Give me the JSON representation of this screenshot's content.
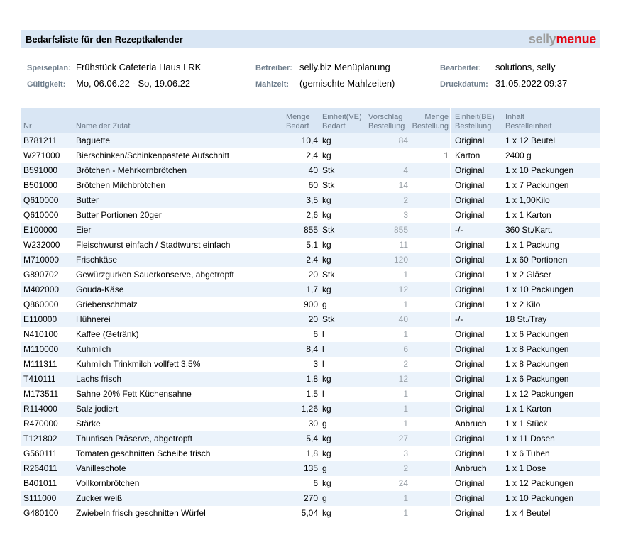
{
  "header": {
    "title": "Bedarfsliste für den Rezeptkalender",
    "logo_part1": "selly",
    "logo_part2": "menue"
  },
  "colors": {
    "bar_blue": "#d9e6f4",
    "row_alt_blue": "#ebf3fb",
    "logo_gray": "#9c9c9b",
    "logo_red": "#e30613",
    "label_gray_blue": "#6f7e8c",
    "vorschlag_gray": "#9aa1a8"
  },
  "meta": {
    "fields": [
      {
        "label": "Speiseplan:",
        "value": "Frühstück Cafeteria Haus I RK"
      },
      {
        "label": "Gültigkeit:",
        "value": "Mo, 06.06.22 - So, 19.06.22"
      },
      {
        "label": "Betreiber:",
        "value": "selly.biz Menüplanung"
      },
      {
        "label": "Mahlzeit:",
        "value": "(gemischte Mahlzeiten)"
      },
      {
        "label": "Bearbeiter:",
        "value": "solutions, selly"
      },
      {
        "label": "Druckdatum:",
        "value": "31.05.2022 09:37"
      }
    ]
  },
  "table": {
    "columns": [
      {
        "id": "nr",
        "l1": "Nr",
        "l2": ""
      },
      {
        "id": "name",
        "l1": "Name der Zutat",
        "l2": ""
      },
      {
        "id": "menge_bedarf",
        "l1": "Menge",
        "l2": "Bedarf"
      },
      {
        "id": "einheit_ve",
        "l1": "Einheit(VE)",
        "l2": "Bedarf"
      },
      {
        "id": "vorschlag",
        "l1": "Vorschlag",
        "l2": "Bestellung"
      },
      {
        "id": "menge_best",
        "l1": "Menge",
        "l2": "Bestellung"
      },
      {
        "id": "einheit_be",
        "l1": "Einheit(BE)",
        "l2": "Bestellung"
      },
      {
        "id": "inhalt",
        "l1": "Inhalt",
        "l2": "Bestelleinheit"
      }
    ],
    "rows": [
      {
        "nr": "B781211",
        "name": "Baguette",
        "menge_bedarf": "10,4",
        "einheit_ve": "kg",
        "vorschlag": "84",
        "menge_best": "",
        "einheit_be": "Original",
        "inhalt": "1 x 12 Beutel"
      },
      {
        "nr": "W271000",
        "name": "Bierschinken/Schinkenpastete Aufschnitt",
        "menge_bedarf": "2,4",
        "einheit_ve": "kg",
        "vorschlag": "",
        "menge_best": "1",
        "einheit_be": "Karton",
        "inhalt": "2400 g"
      },
      {
        "nr": "B591000",
        "name": "Brötchen - Mehrkornbrötchen",
        "menge_bedarf": "40",
        "einheit_ve": "Stk",
        "vorschlag": "4",
        "menge_best": "",
        "einheit_be": "Original",
        "inhalt": "1 x 10 Packungen"
      },
      {
        "nr": "B501000",
        "name": "Brötchen Milchbrötchen",
        "menge_bedarf": "60",
        "einheit_ve": "Stk",
        "vorschlag": "14",
        "menge_best": "",
        "einheit_be": "Original",
        "inhalt": "1 x 7 Packungen"
      },
      {
        "nr": "Q610000",
        "name": "Butter",
        "menge_bedarf": "3,5",
        "einheit_ve": "kg",
        "vorschlag": "2",
        "menge_best": "",
        "einheit_be": "Original",
        "inhalt": "1 x 1,00Kilo"
      },
      {
        "nr": "Q610000",
        "name": "Butter Portionen 20ger",
        "menge_bedarf": "2,6",
        "einheit_ve": "kg",
        "vorschlag": "3",
        "menge_best": "",
        "einheit_be": "Original",
        "inhalt": "1 x 1 Karton"
      },
      {
        "nr": "E100000",
        "name": "Eier",
        "menge_bedarf": "855",
        "einheit_ve": "Stk",
        "vorschlag": "855",
        "menge_best": "",
        "einheit_be": "-/-",
        "inhalt": "360 St./Kart."
      },
      {
        "nr": "W232000",
        "name": "Fleischwurst einfach / Stadtwurst einfach",
        "menge_bedarf": "5,1",
        "einheit_ve": "kg",
        "vorschlag": "11",
        "menge_best": "",
        "einheit_be": "Original",
        "inhalt": "1 x 1 Packung"
      },
      {
        "nr": "M710000",
        "name": "Frischkäse",
        "menge_bedarf": "2,4",
        "einheit_ve": "kg",
        "vorschlag": "120",
        "menge_best": "",
        "einheit_be": "Original",
        "inhalt": "1 x 60 Portionen"
      },
      {
        "nr": "G890702",
        "name": "Gewürzgurken Sauerkonserve, abgetropft",
        "menge_bedarf": "20",
        "einheit_ve": "Stk",
        "vorschlag": "1",
        "menge_best": "",
        "einheit_be": "Original",
        "inhalt": "1 x 2 Gläser"
      },
      {
        "nr": "M402000",
        "name": "Gouda-Käse",
        "menge_bedarf": "1,7",
        "einheit_ve": "kg",
        "vorschlag": "12",
        "menge_best": "",
        "einheit_be": "Original",
        "inhalt": "1 x 10 Packungen"
      },
      {
        "nr": "Q860000",
        "name": "Griebenschmalz",
        "menge_bedarf": "900",
        "einheit_ve": "g",
        "vorschlag": "1",
        "menge_best": "",
        "einheit_be": "Original",
        "inhalt": "1 x 2 Kilo"
      },
      {
        "nr": "E110000",
        "name": "Hühnerei",
        "menge_bedarf": "20",
        "einheit_ve": "Stk",
        "vorschlag": "40",
        "menge_best": "",
        "einheit_be": "-/-",
        "inhalt": "18 St./Tray"
      },
      {
        "nr": "N410100",
        "name": "Kaffee (Getränk)",
        "menge_bedarf": "6",
        "einheit_ve": "l",
        "vorschlag": "1",
        "menge_best": "",
        "einheit_be": "Original",
        "inhalt": "1 x 6 Packungen"
      },
      {
        "nr": "M110000",
        "name": "Kuhmilch",
        "menge_bedarf": "8,4",
        "einheit_ve": "l",
        "vorschlag": "6",
        "menge_best": "",
        "einheit_be": "Original",
        "inhalt": "1 x 8 Packungen"
      },
      {
        "nr": "M111311",
        "name": "Kuhmilch Trinkmilch vollfett 3,5%",
        "menge_bedarf": "3",
        "einheit_ve": "l",
        "vorschlag": "2",
        "menge_best": "",
        "einheit_be": "Original",
        "inhalt": "1 x 8 Packungen"
      },
      {
        "nr": "T410111",
        "name": "Lachs frisch",
        "menge_bedarf": "1,8",
        "einheit_ve": "kg",
        "vorschlag": "12",
        "menge_best": "",
        "einheit_be": "Original",
        "inhalt": "1 x 6 Packungen"
      },
      {
        "nr": "M173511",
        "name": "Sahne 20% Fett Küchensahne",
        "menge_bedarf": "1,5",
        "einheit_ve": "l",
        "vorschlag": "1",
        "menge_best": "",
        "einheit_be": "Original",
        "inhalt": "1 x 12 Packungen"
      },
      {
        "nr": "R114000",
        "name": "Salz jodiert",
        "menge_bedarf": "1,26",
        "einheit_ve": "kg",
        "vorschlag": "1",
        "menge_best": "",
        "einheit_be": "Original",
        "inhalt": "1 x 1 Karton"
      },
      {
        "nr": "R470000",
        "name": "Stärke",
        "menge_bedarf": "30",
        "einheit_ve": "g",
        "vorschlag": "1",
        "menge_best": "",
        "einheit_be": "Anbruch",
        "inhalt": "1 x 1 Stück"
      },
      {
        "nr": "T121802",
        "name": "Thunfisch Präserve, abgetropft",
        "menge_bedarf": "5,4",
        "einheit_ve": "kg",
        "vorschlag": "27",
        "menge_best": "",
        "einheit_be": "Original",
        "inhalt": "1 x 11 Dosen"
      },
      {
        "nr": "G560111",
        "name": "Tomaten geschnitten Scheibe frisch",
        "menge_bedarf": "1,8",
        "einheit_ve": "kg",
        "vorschlag": "3",
        "menge_best": "",
        "einheit_be": "Original",
        "inhalt": "1 x 6 Tuben"
      },
      {
        "nr": "R264011",
        "name": "Vanilleschote",
        "menge_bedarf": "135",
        "einheit_ve": "g",
        "vorschlag": "2",
        "menge_best": "",
        "einheit_be": "Anbruch",
        "inhalt": "1 x 1 Dose"
      },
      {
        "nr": "B401011",
        "name": "Vollkornbrötchen",
        "menge_bedarf": "6",
        "einheit_ve": "kg",
        "vorschlag": "24",
        "menge_best": "",
        "einheit_be": "Original",
        "inhalt": "1 x 12 Packungen"
      },
      {
        "nr": "S111000",
        "name": "Zucker weiß",
        "menge_bedarf": "270",
        "einheit_ve": "g",
        "vorschlag": "1",
        "menge_best": "",
        "einheit_be": "Original",
        "inhalt": "1 x 10 Packungen"
      },
      {
        "nr": "G480100",
        "name": "Zwiebeln frisch geschnitten Würfel",
        "menge_bedarf": "5,04",
        "einheit_ve": "kg",
        "vorschlag": "1",
        "menge_best": "",
        "einheit_be": "Original",
        "inhalt": "1 x 4 Beutel"
      }
    ]
  }
}
